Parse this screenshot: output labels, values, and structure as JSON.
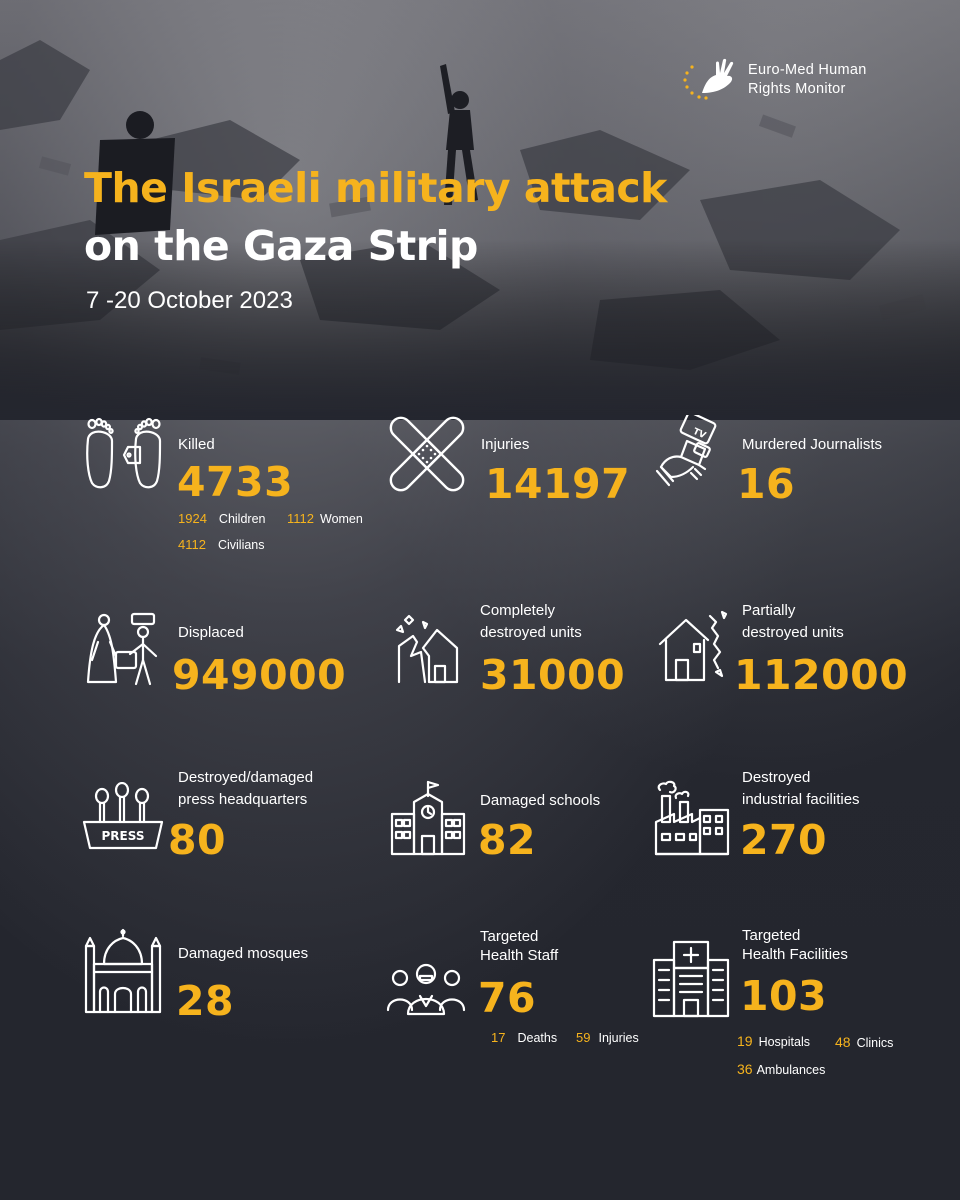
{
  "org": {
    "line1": "Euro-Med Human",
    "line2": "Rights Monitor"
  },
  "title": {
    "line1": "The Israeli military attack",
    "line2": "on the Gaza Strip"
  },
  "date": "7 -20  October 2023",
  "colors": {
    "accent": "#f6b31d",
    "background": "#24262f",
    "text": "#ffffff"
  },
  "stats": {
    "killed": {
      "label": "Killed",
      "value": "4733",
      "icon": "footprints-tag-icon",
      "breakdown": [
        {
          "num": "1924",
          "label": "Children"
        },
        {
          "num": "1112",
          "label": "Women"
        },
        {
          "num": "4112",
          "label": "Civilians"
        }
      ]
    },
    "injuries": {
      "label": "Injuries",
      "value": "14197",
      "icon": "crossed-bandages-icon"
    },
    "journalists": {
      "label": "Murdered Journalists",
      "value": "16",
      "icon": "hand-microphone-icon"
    },
    "displaced": {
      "label": "Displaced",
      "value": "949000",
      "icon": "displaced-people-icon"
    },
    "destroyed_units": {
      "label1": "Completely",
      "label2": "destroyed units",
      "value": "31000",
      "icon": "collapsed-house-icon"
    },
    "partial_units": {
      "label1": "Partially",
      "label2": "destroyed units",
      "value": "112000",
      "icon": "cracked-house-icon"
    },
    "press_hq": {
      "label1": "Destroyed/damaged",
      "label2": "press headquarters",
      "value": "80",
      "icon": "press-desk-icon",
      "badge": "PRESS"
    },
    "schools": {
      "label": "Damaged schools",
      "value": "82",
      "icon": "school-building-icon"
    },
    "industrial": {
      "label1": "Destroyed",
      "label2": "industrial facilities",
      "value": "270",
      "icon": "factory-icon"
    },
    "mosques": {
      "label": "Damaged mosques",
      "value": "28",
      "icon": "mosque-icon"
    },
    "health_staff": {
      "label1": "Targeted",
      "label2": "Health Staff",
      "value": "76",
      "icon": "medical-staff-icon",
      "breakdown": [
        {
          "num": "17",
          "label": "Deaths"
        },
        {
          "num": "59",
          "label": "Injuries"
        }
      ]
    },
    "health_facilities": {
      "label1": "Targeted",
      "label2": "Health Facilities",
      "value": "103",
      "icon": "hospital-icon",
      "breakdown": [
        {
          "num": "19",
          "label": "Hospitals"
        },
        {
          "num": "48",
          "label": "Clinics"
        },
        {
          "num": "36",
          "label": "Ambulances"
        }
      ]
    }
  }
}
